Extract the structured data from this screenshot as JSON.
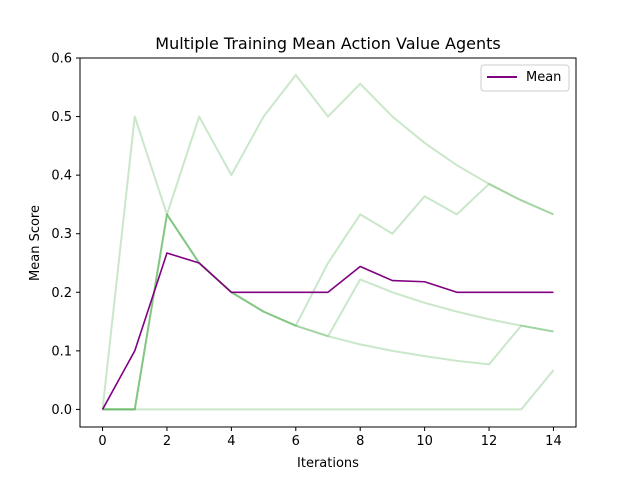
{
  "chart_data": {
    "type": "line",
    "title": "Multiple Training Mean Action Value Agents",
    "xlabel": "Iterations",
    "ylabel": "Mean Score",
    "xlim": [
      -0.7,
      14.7
    ],
    "ylim": [
      -0.03,
      0.6
    ],
    "xticks": [
      0,
      2,
      4,
      6,
      8,
      10,
      12,
      14
    ],
    "yticks": [
      0.0,
      0.1,
      0.2,
      0.3,
      0.4,
      0.5,
      0.6
    ],
    "xtick_labels": [
      "0",
      "2",
      "4",
      "6",
      "8",
      "10",
      "12",
      "14"
    ],
    "ytick_labels": [
      "0.0",
      "0.1",
      "0.2",
      "0.3",
      "0.4",
      "0.5",
      "0.6"
    ],
    "grid": false,
    "legend_position": "top-right",
    "x": [
      0,
      1,
      2,
      3,
      4,
      5,
      6,
      7,
      8,
      9,
      10,
      11,
      12,
      13,
      14
    ],
    "agents": [
      {
        "values": [
          0,
          0.5,
          0.333,
          0.5,
          0.4,
          0.5,
          0.571,
          0.5,
          0.556,
          0.5,
          0.455,
          0.417,
          0.385,
          0.357,
          0.333
        ]
      },
      {
        "values": [
          0,
          0,
          0.333,
          0.25,
          0.2,
          0.167,
          0.143,
          0.25,
          0.333,
          0.3,
          0.364,
          0.333,
          0.385,
          0.357,
          0.333
        ]
      },
      {
        "values": [
          0,
          0,
          0.333,
          0.25,
          0.2,
          0.167,
          0.143,
          0.125,
          0.222,
          0.2,
          0.182,
          0.167,
          0.154,
          0.143,
          0.133
        ]
      },
      {
        "values": [
          0,
          0,
          0.333,
          0.25,
          0.2,
          0.167,
          0.143,
          0.125,
          0.111,
          0.1,
          0.091,
          0.083,
          0.077,
          0.143,
          0.133
        ]
      },
      {
        "values": [
          0,
          0,
          0,
          0,
          0,
          0,
          0,
          0,
          0,
          0,
          0,
          0,
          0,
          0,
          0.067
        ]
      }
    ],
    "series": [
      {
        "name": "Mean",
        "values": [
          0,
          0.1,
          0.267,
          0.25,
          0.2,
          0.2,
          0.2,
          0.2,
          0.244,
          0.22,
          0.218,
          0.2,
          0.2,
          0.2,
          0.2
        ]
      }
    ],
    "colors": {
      "agent": "#2ca02c",
      "agent_opacity": 0.25,
      "mean": "#800080"
    }
  }
}
